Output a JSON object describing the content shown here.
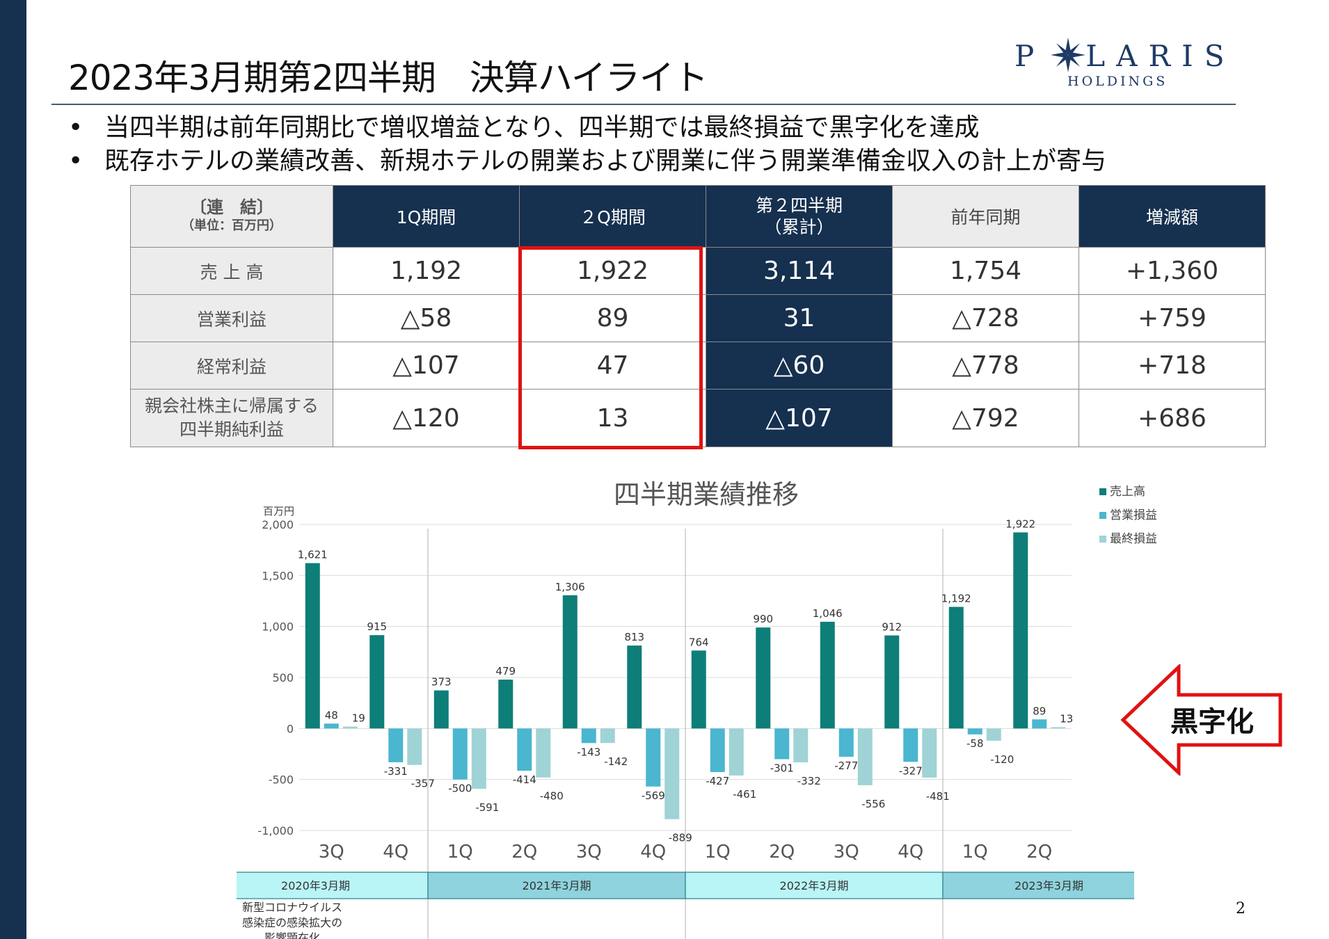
{
  "slide": {
    "title": "2023年3月期第2四半期　決算ハイライト",
    "page_number": "2"
  },
  "logo": {
    "wordmark_left": "P",
    "wordmark_right": "LARIS",
    "sub": "HOLDINGS",
    "icon": "compass-star-icon",
    "color": "#1e3a66"
  },
  "bullets": [
    "当四半期は前年同期比で増収増益となり、四半期では最終損益で黒字化を達成",
    "既存ホテルの業績改善、新規ホテルの開業および開業に伴う開業準備金収入の計上が寄与"
  ],
  "table": {
    "corner_line1": "〔連　結〕",
    "corner_line2": "（単位：百万円）",
    "headers": {
      "q1": "1Q期間",
      "q2": "２Q期間",
      "cum_line1": "第２四半期",
      "cum_line2": "（累計）",
      "prev": "前年同期",
      "diff": "増減額"
    },
    "rows": [
      {
        "label": "売 上 高",
        "q1": "1,192",
        "q2": "1,922",
        "cum": "3,114",
        "prev": "1,754",
        "diff": "+1,360"
      },
      {
        "label": "営業利益",
        "q1": "△58",
        "q2": "89",
        "cum": "31",
        "prev": "△728",
        "diff": "+759"
      },
      {
        "label": "経常利益",
        "q1": "△107",
        "q2": "47",
        "cum": "△60",
        "prev": "△778",
        "diff": "+718"
      },
      {
        "label_line1": "親会社株主に帰属する",
        "label_line2": "四半期純利益",
        "q1": "△120",
        "q2": "13",
        "cum": "△107",
        "prev": "△792",
        "diff": "+686"
      }
    ],
    "colors": {
      "dark": "#16304f",
      "light": "#ececec",
      "highlight": "#e01212"
    }
  },
  "chart_data": {
    "type": "bar",
    "title": "四半期業績推移",
    "ylabel": "百万円",
    "ylim": [
      -1000,
      2000
    ],
    "yticks": [
      2000,
      1500,
      1000,
      500,
      0,
      -500,
      -1000
    ],
    "ytick_labels": [
      "2,000",
      "1,500",
      "1,000",
      "500",
      "0",
      "-500",
      "-1,000"
    ],
    "categories": [
      "3Q",
      "4Q",
      "1Q",
      "2Q",
      "3Q",
      "4Q",
      "1Q",
      "2Q",
      "3Q",
      "4Q",
      "1Q",
      "2Q"
    ],
    "series": [
      {
        "name": "売上高",
        "color": "#0e7e78",
        "values": [
          1621,
          915,
          373,
          479,
          1306,
          813,
          764,
          990,
          1046,
          912,
          1192,
          1922
        ]
      },
      {
        "name": "営業損益",
        "color": "#4ab6cf",
        "values": [
          48,
          -331,
          -500,
          -414,
          -143,
          -569,
          -427,
          -301,
          -277,
          -327,
          -58,
          89
        ]
      },
      {
        "name": "最終損益",
        "color": "#9fd3d6",
        "values": [
          19,
          -357,
          -591,
          -480,
          -142,
          -889,
          -461,
          -332,
          -556,
          -481,
          -120,
          13
        ]
      }
    ],
    "periods": [
      {
        "label": "2020年3月期",
        "start": 0,
        "end": 2,
        "color": "#b9f4f7"
      },
      {
        "label": "2021年3月期",
        "start": 2,
        "end": 6,
        "color": "#8ed3dd"
      },
      {
        "label": "2022年3月期",
        "start": 6,
        "end": 10,
        "color": "#b9f4f7"
      },
      {
        "label": "2023年3月期",
        "start": 10,
        "end": 12,
        "color": "#8ed3dd"
      }
    ],
    "annotation_lines": [
      "新型コロナウイルス",
      "感染症の感染拡大の",
      "影響顕在化"
    ],
    "legend_position": "top-right",
    "grid": true
  },
  "callout": {
    "label": "黒字化",
    "border_color": "#e01212"
  }
}
